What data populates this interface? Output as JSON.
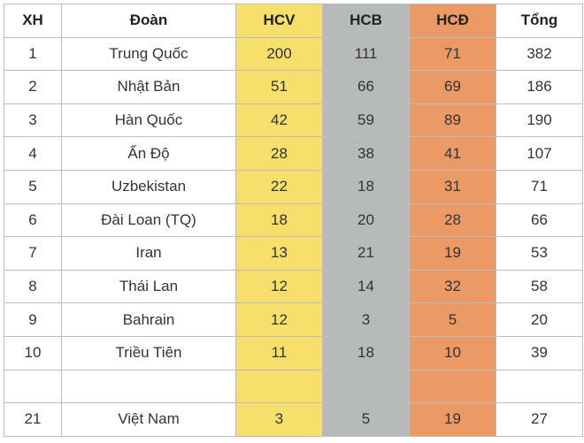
{
  "headers": {
    "rank": "XH",
    "team": "Đoàn",
    "gold": "HCV",
    "silver": "HCB",
    "bronze": "HCĐ",
    "total": "Tổng"
  },
  "colors": {
    "gold": "#f7df6c",
    "silver": "#b6babb",
    "bronze": "#eb9a66"
  },
  "rows": [
    {
      "rank": "1",
      "team": "Trung Quốc",
      "gold": "200",
      "silver": "111",
      "bronze": "71",
      "total": "382"
    },
    {
      "rank": "2",
      "team": "Nhật Bản",
      "gold": "51",
      "silver": "66",
      "bronze": "69",
      "total": "186"
    },
    {
      "rank": "3",
      "team": "Hàn Quốc",
      "gold": "42",
      "silver": "59",
      "bronze": "89",
      "total": "190"
    },
    {
      "rank": "4",
      "team": "Ấn Độ",
      "gold": "28",
      "silver": "38",
      "bronze": "41",
      "total": "107"
    },
    {
      "rank": "5",
      "team": "Uzbekistan",
      "gold": "22",
      "silver": "18",
      "bronze": "31",
      "total": "71"
    },
    {
      "rank": "6",
      "team": "Đài Loan (TQ)",
      "gold": "18",
      "silver": "20",
      "bronze": "28",
      "total": "66"
    },
    {
      "rank": "7",
      "team": "Iran",
      "gold": "13",
      "silver": "21",
      "bronze": "19",
      "total": "53"
    },
    {
      "rank": "8",
      "team": "Thái Lan",
      "gold": "12",
      "silver": "14",
      "bronze": "32",
      "total": "58"
    },
    {
      "rank": "9",
      "team": "Bahrain",
      "gold": "12",
      "silver": "3",
      "bronze": "5",
      "total": "20"
    },
    {
      "rank": "10",
      "team": "Triều Tiên",
      "gold": "11",
      "silver": "18",
      "bronze": "10",
      "total": "39"
    },
    {
      "rank": "",
      "team": "",
      "gold": "",
      "silver": "",
      "bronze": "",
      "total": ""
    },
    {
      "rank": "21",
      "team": "Việt Nam",
      "gold": "3",
      "silver": "5",
      "bronze": "19",
      "total": "27"
    }
  ]
}
